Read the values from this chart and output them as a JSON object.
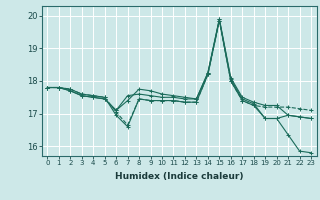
{
  "xlabel": "Humidex (Indice chaleur)",
  "ylabel": "",
  "bg_color": "#cde8e8",
  "grid_color": "#b8d8d8",
  "line_color": "#1a6b5a",
  "xlim": [
    -0.5,
    23.5
  ],
  "ylim": [
    15.7,
    20.3
  ],
  "yticks": [
    16,
    17,
    18,
    19,
    20
  ],
  "xticks": [
    0,
    1,
    2,
    3,
    4,
    5,
    6,
    7,
    8,
    9,
    10,
    11,
    12,
    13,
    14,
    15,
    16,
    17,
    18,
    19,
    20,
    21,
    22,
    23
  ],
  "series": [
    [
      17.8,
      17.8,
      17.7,
      17.55,
      17.5,
      17.45,
      17.1,
      17.55,
      17.6,
      17.55,
      17.5,
      17.5,
      17.45,
      17.45,
      18.25,
      19.9,
      18.05,
      17.45,
      17.3,
      16.85,
      16.85,
      16.35,
      15.85,
      15.8
    ],
    [
      17.8,
      17.8,
      17.75,
      17.6,
      17.55,
      17.5,
      16.95,
      16.6,
      17.45,
      17.4,
      17.4,
      17.4,
      17.35,
      17.35,
      18.2,
      19.85,
      18.0,
      17.4,
      17.25,
      16.85,
      16.85,
      16.95,
      16.9,
      16.85
    ],
    [
      17.8,
      17.8,
      17.75,
      17.6,
      17.55,
      17.5,
      17.05,
      16.65,
      17.45,
      17.4,
      17.4,
      17.4,
      17.35,
      17.35,
      18.2,
      19.85,
      18.0,
      17.4,
      17.25,
      17.2,
      17.2,
      17.2,
      17.15,
      17.1
    ],
    [
      17.8,
      17.8,
      17.7,
      17.55,
      17.5,
      17.45,
      17.1,
      17.4,
      17.75,
      17.7,
      17.6,
      17.55,
      17.5,
      17.45,
      18.25,
      19.9,
      18.1,
      17.5,
      17.35,
      17.25,
      17.25,
      16.95,
      16.9,
      16.85
    ]
  ],
  "line_styles": [
    "-",
    "-",
    "--",
    "-"
  ],
  "marker": "+"
}
